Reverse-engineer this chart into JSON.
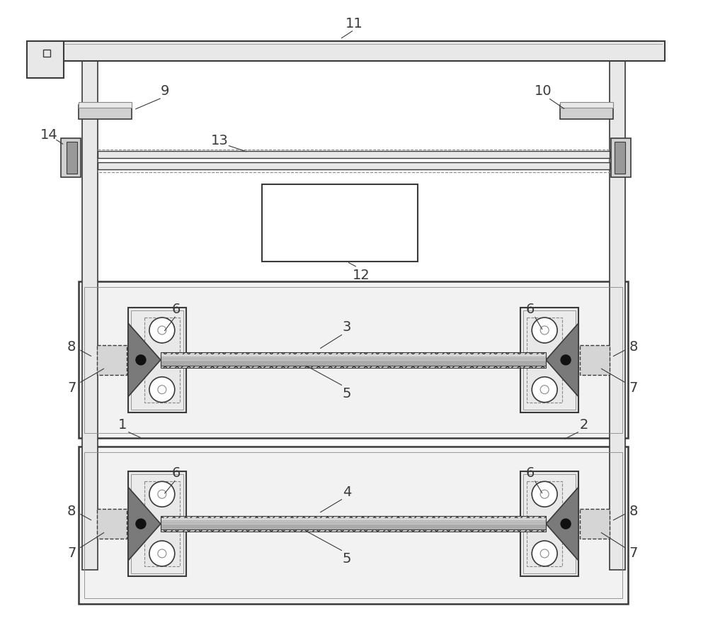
{
  "bg_color": "#ffffff",
  "dk": "#3a3a3a",
  "mg": "#888888",
  "lg": "#bbbbbb",
  "fc_light": "#e8e8e8",
  "fc_white": "#ffffff",
  "fc_mid": "#d0d0d0",
  "fc_dark": "#999999",
  "lbl": "#333333",
  "fig_width": 10.0,
  "fig_height": 9.04
}
